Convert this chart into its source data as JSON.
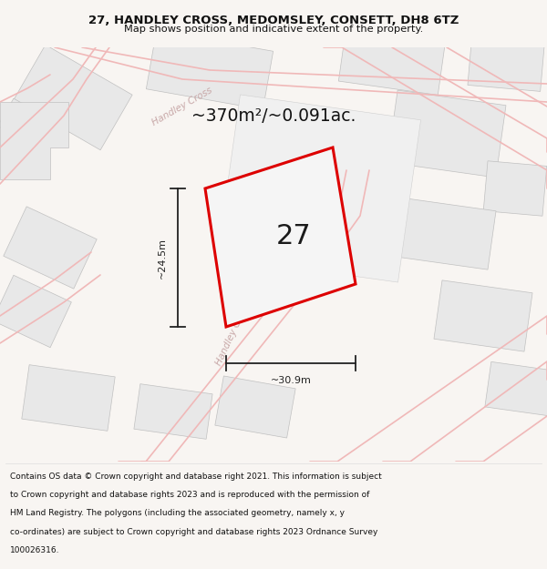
{
  "title_line1": "27, HANDLEY CROSS, MEDOMSLEY, CONSETT, DH8 6TZ",
  "title_line2": "Map shows position and indicative extent of the property.",
  "area_text": "~370m²/~0.091ac.",
  "plot_number": "27",
  "dim_width": "~30.9m",
  "dim_height": "~24.5m",
  "footer_lines": [
    "Contains OS data © Crown copyright and database right 2021. This information is subject",
    "to Crown copyright and database rights 2023 and is reproduced with the permission of",
    "HM Land Registry. The polygons (including the associated geometry, namely x, y",
    "co-ordinates) are subject to Crown copyright and database rights 2023 Ordnance Survey",
    "100026316."
  ],
  "map_bg": "#ffffff",
  "road_color": "#f0b8b8",
  "road_lw": 1.2,
  "building_face": "#e8e8e8",
  "building_edge": "#c0c0c0",
  "plot_edge": "#dd0000",
  "plot_face": "#f5f5f5",
  "street_color": "#c8a8a8",
  "dim_color": "#222222",
  "title_bg": "#ffffff",
  "footer_bg": "#ffffff",
  "fig_bg": "#f8f5f2"
}
